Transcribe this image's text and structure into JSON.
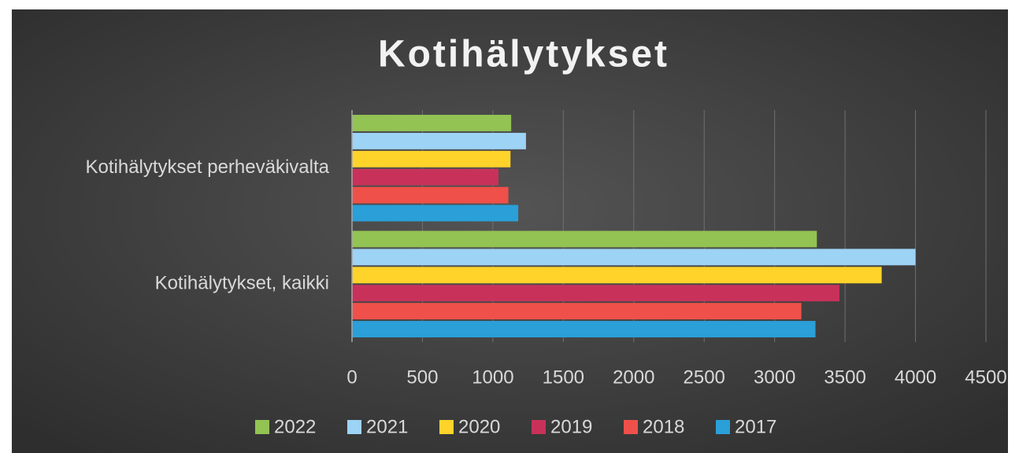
{
  "chart_data": {
    "type": "hbar",
    "title": "Kotihälytykset",
    "categories": [
      "Kotihälytykset perheväkivalta",
      "Kotihälytykset, kaikki"
    ],
    "series": [
      {
        "name": "2022",
        "color": "#92c353",
        "values": [
          1130,
          3300
        ]
      },
      {
        "name": "2021",
        "color": "#9dd3f5",
        "values": [
          1235,
          4000
        ]
      },
      {
        "name": "2020",
        "color": "#ffd32a",
        "values": [
          1125,
          3760
        ]
      },
      {
        "name": "2019",
        "color": "#c8325a",
        "values": [
          1040,
          3460
        ]
      },
      {
        "name": "2018",
        "color": "#f0504a",
        "values": [
          1110,
          3190
        ]
      },
      {
        "name": "2017",
        "color": "#2a9fd8",
        "values": [
          1180,
          3290
        ]
      }
    ],
    "xlim": [
      0,
      4500
    ],
    "xticks": [
      0,
      500,
      1000,
      1500,
      2000,
      2500,
      3000,
      3500,
      4000,
      4500
    ],
    "grid": true,
    "legend": "bottom"
  }
}
